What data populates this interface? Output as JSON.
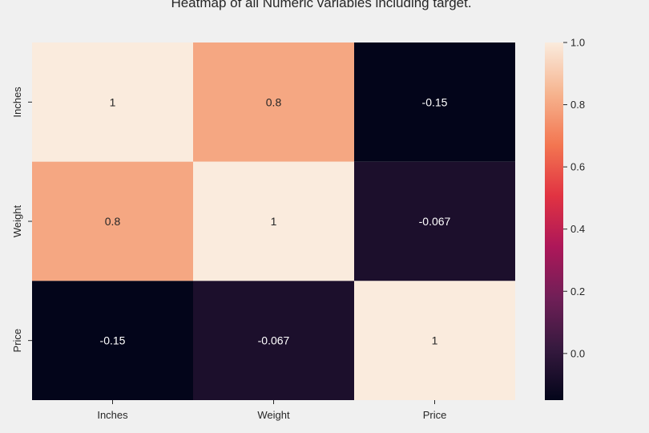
{
  "chart_data": {
    "type": "heatmap",
    "title": "Heatmap of all Numeric variables including target.",
    "x_categories": [
      "Inches",
      "Weight",
      "Price"
    ],
    "y_categories": [
      "Inches",
      "Weight",
      "Price"
    ],
    "values": [
      [
        1,
        0.8,
        -0.15
      ],
      [
        0.8,
        1,
        -0.067
      ],
      [
        -0.15,
        -0.067,
        1
      ]
    ],
    "annotations": [
      [
        "1",
        "0.8",
        "-0.15"
      ],
      [
        "0.8",
        "1",
        "-0.067"
      ],
      [
        "-0.15",
        "-0.067",
        "1"
      ]
    ],
    "colorbar": {
      "colormap": "rocket",
      "range": [
        -0.15,
        1.0
      ],
      "ticks": [
        0.0,
        0.2,
        0.4,
        0.6,
        0.8,
        1.0
      ],
      "tick_labels": [
        "0.0",
        "0.2",
        "0.4",
        "0.6",
        "0.8",
        "1.0"
      ]
    },
    "colors": {
      "stops": [
        "#03051a",
        "#35193e",
        "#701f57",
        "#ad1759",
        "#e13342",
        "#f37651",
        "#f6b48f",
        "#faebdd"
      ],
      "annotation_light_text": "#ffffff",
      "annotation_dark_text": "#262626"
    },
    "grid": false
  }
}
